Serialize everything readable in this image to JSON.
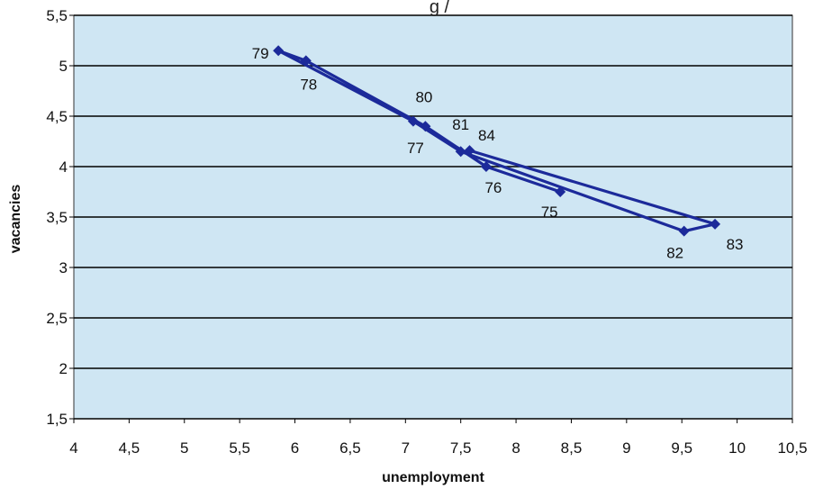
{
  "chart_data": {
    "type": "line",
    "title": "",
    "xlabel": "unemployment",
    "ylabel": "vacancies",
    "xlim": [
      4,
      10.5
    ],
    "ylim": [
      1.5,
      5.5
    ],
    "x_ticks": [
      4,
      4.5,
      5,
      5.5,
      6,
      6.5,
      7,
      7.5,
      8,
      8.5,
      9,
      9.5,
      10,
      10.5
    ],
    "x_tick_labels": [
      "4",
      "4,5",
      "5",
      "5,5",
      "6",
      "6,5",
      "7",
      "7,5",
      "8",
      "8,5",
      "9",
      "9,5",
      "10",
      "10,5"
    ],
    "y_ticks": [
      1.5,
      2,
      2.5,
      3,
      3.5,
      4,
      4.5,
      5,
      5.5
    ],
    "y_tick_labels": [
      "1,5",
      "2",
      "2,5",
      "3",
      "3,5",
      "4",
      "4,5",
      "5",
      "5,5"
    ],
    "grid": "horizontal",
    "colors": {
      "plot_background": "#cfe6f3",
      "series": "#1c2a9a",
      "gridline": "#000000"
    },
    "series": [
      {
        "points": [
          {
            "label": "75",
            "x": 8.4,
            "y": 3.75
          },
          {
            "label": "76",
            "x": 7.73,
            "y": 4.0
          },
          {
            "label": "77",
            "x": 7.18,
            "y": 4.4
          },
          {
            "label": "78",
            "x": 6.1,
            "y": 5.05
          },
          {
            "label": "79",
            "x": 5.85,
            "y": 5.15
          },
          {
            "label": "80",
            "x": 7.07,
            "y": 4.45
          },
          {
            "label": "81",
            "x": 7.5,
            "y": 4.15
          },
          {
            "label": "82",
            "x": 9.52,
            "y": 3.36
          },
          {
            "label": "83",
            "x": 9.8,
            "y": 3.43
          },
          {
            "label": "84",
            "x": 7.58,
            "y": 4.16
          }
        ]
      }
    ]
  }
}
